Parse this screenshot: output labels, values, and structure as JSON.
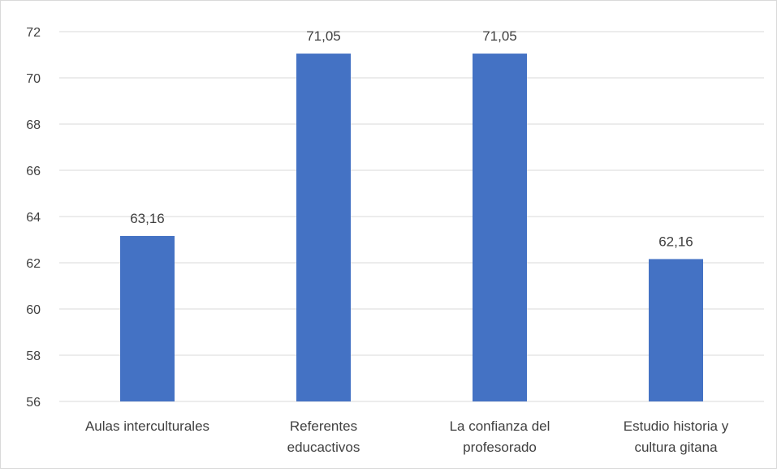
{
  "chart_data": {
    "type": "bar",
    "categories": [
      [
        "Aulas interculturales"
      ],
      [
        "Referentes",
        "educactivos"
      ],
      [
        "La confianza del",
        "profesorado"
      ],
      [
        "Estudio historia y",
        "cultura gitana"
      ]
    ],
    "values": [
      63.16,
      71.05,
      71.05,
      62.16
    ],
    "data_labels": [
      "63,16",
      "71,05",
      "71,05",
      "62,16"
    ],
    "ylim": [
      56,
      72
    ],
    "y_ticks": [
      56,
      58,
      60,
      62,
      64,
      66,
      68,
      70,
      72
    ],
    "grid": true,
    "legend": "none",
    "colors": {
      "bar": "#4472c4",
      "gridline": "#d9d9d9",
      "text": "#404040",
      "border": "#d9d9d9"
    }
  }
}
